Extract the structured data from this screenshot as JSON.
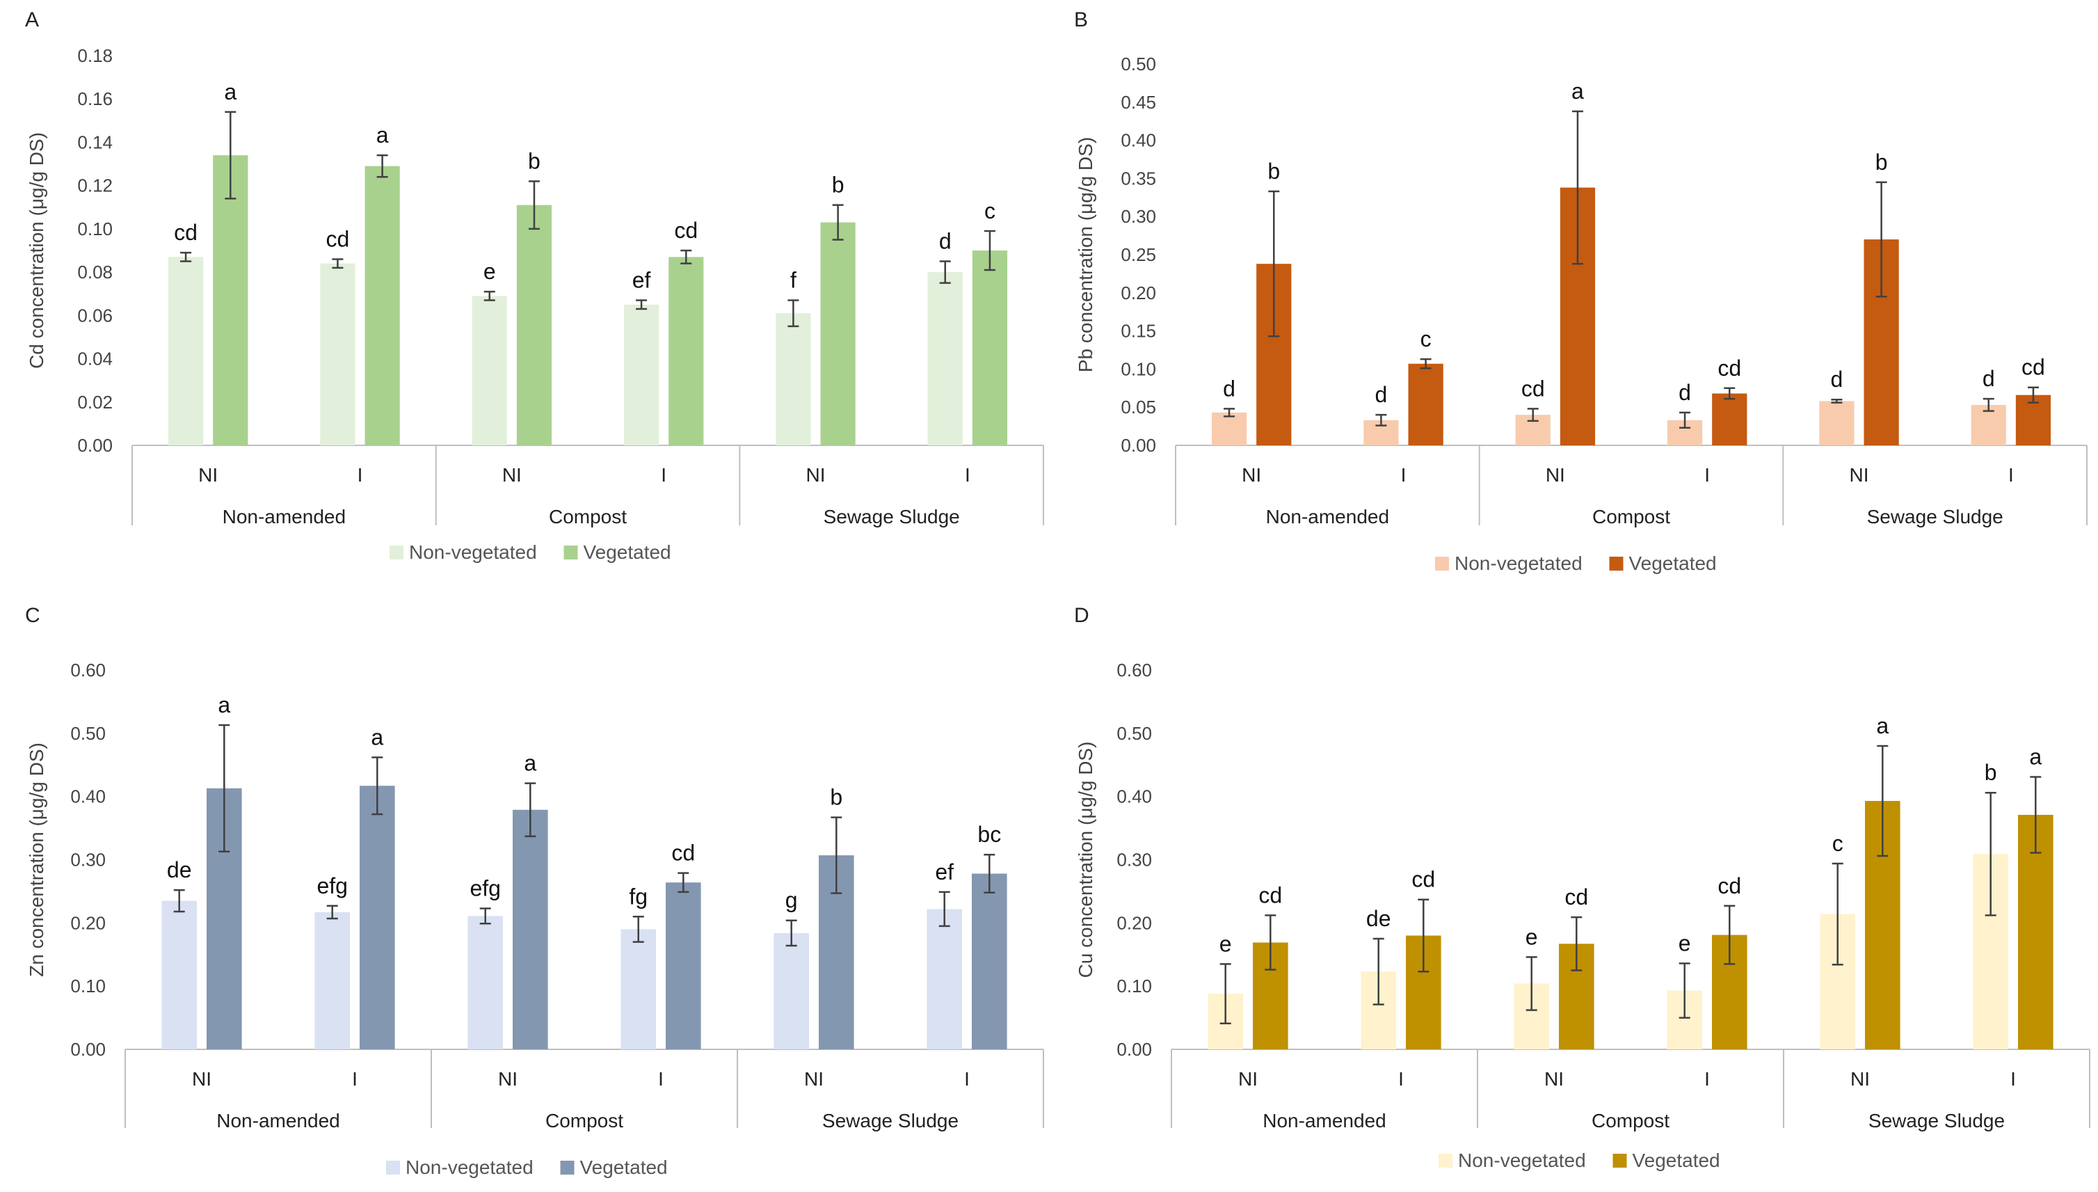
{
  "chart_data": [
    {
      "type": "bar",
      "panel_label": "A",
      "ylabel": "Cd concentration (μg/g DS)",
      "ylim": [
        0,
        0.18
      ],
      "ytick_labels": [
        "0.00",
        "0.02",
        "0.04",
        "0.06",
        "0.08",
        "0.10",
        "0.12",
        "0.14",
        "0.16",
        "0.18"
      ],
      "groups": [
        "Non-amended",
        "Compost",
        "Sewage Sludge"
      ],
      "categories": [
        "NI",
        "I",
        "NI",
        "I",
        "NI",
        "I"
      ],
      "series": [
        {
          "name": "Non-vegetated",
          "color": "#e2efda",
          "values": [
            0.087,
            0.084,
            0.069,
            0.065,
            0.061,
            0.08
          ],
          "errors": [
            0.002,
            0.002,
            0.002,
            0.002,
            0.006,
            0.005
          ],
          "letters": [
            "cd",
            "cd",
            "e",
            "ef",
            "f",
            "d"
          ]
        },
        {
          "name": "Vegetated",
          "color": "#a9d18e",
          "values": [
            0.134,
            0.129,
            0.111,
            0.087,
            0.103,
            0.09
          ],
          "errors": [
            0.02,
            0.005,
            0.011,
            0.003,
            0.008,
            0.009
          ],
          "letters": [
            "a",
            "a",
            "b",
            "cd",
            "b",
            "c"
          ]
        }
      ]
    },
    {
      "type": "bar",
      "panel_label": "B",
      "ylabel": "Pb concentration (μg/g DS)",
      "ylim": [
        0,
        0.5
      ],
      "ytick_labels": [
        "0.00",
        "0.05",
        "0.10",
        "0.15",
        "0.20",
        "0.25",
        "0.30",
        "0.35",
        "0.40",
        "0.45",
        "0.50"
      ],
      "groups": [
        "Non-amended",
        "Compost",
        "Sewage Sludge"
      ],
      "categories": [
        "NI",
        "I",
        "NI",
        "I",
        "NI",
        "I"
      ],
      "series": [
        {
          "name": "Non-vegetated",
          "color": "#f8cbad",
          "values": [
            0.043,
            0.033,
            0.04,
            0.033,
            0.058,
            0.053
          ],
          "errors": [
            0.005,
            0.007,
            0.008,
            0.01,
            0.002,
            0.008
          ],
          "letters": [
            "d",
            "d",
            "cd",
            "d",
            "d",
            "d"
          ]
        },
        {
          "name": "Vegetated",
          "color": "#c55a11",
          "values": [
            0.238,
            0.107,
            0.338,
            0.068,
            0.27,
            0.066
          ],
          "errors": [
            0.095,
            0.006,
            0.1,
            0.007,
            0.075,
            0.01
          ],
          "letters": [
            "b",
            "c",
            "a",
            "cd",
            "b",
            "cd"
          ]
        }
      ]
    },
    {
      "type": "bar",
      "panel_label": "C",
      "ylabel": "Zn concentration (μg/g DS)",
      "ylim": [
        0,
        0.6
      ],
      "ytick_labels": [
        "0.00",
        "0.10",
        "0.20",
        "0.30",
        "0.40",
        "0.50",
        "0.60"
      ],
      "groups": [
        "Non-amended",
        "Compost",
        "Sewage Sludge"
      ],
      "categories": [
        "NI",
        "I",
        "NI",
        "I",
        "NI",
        "I"
      ],
      "series": [
        {
          "name": "Non-vegetated",
          "color": "#d9e1f2",
          "values": [
            0.235,
            0.217,
            0.211,
            0.19,
            0.184,
            0.222
          ],
          "errors": [
            0.017,
            0.01,
            0.012,
            0.02,
            0.02,
            0.027
          ],
          "letters": [
            "de",
            "efg",
            "efg",
            "fg",
            "g",
            "ef"
          ]
        },
        {
          "name": "Vegetated",
          "color": "#8497b0",
          "values": [
            0.413,
            0.417,
            0.379,
            0.264,
            0.307,
            0.278
          ],
          "errors": [
            0.1,
            0.045,
            0.042,
            0.015,
            0.06,
            0.03
          ],
          "letters": [
            "a",
            "a",
            "a",
            "cd",
            "b",
            "bc"
          ]
        }
      ]
    },
    {
      "type": "bar",
      "panel_label": "D",
      "ylabel": "Cu concentration (μg/g DS)",
      "ylim": [
        0,
        0.6
      ],
      "ytick_labels": [
        "0.00",
        "0.10",
        "0.20",
        "0.30",
        "0.40",
        "0.50",
        "0.60"
      ],
      "groups": [
        "Non-amended",
        "Compost",
        "Sewage Sludge"
      ],
      "categories": [
        "NI",
        "I",
        "NI",
        "I",
        "NI",
        "I"
      ],
      "series": [
        {
          "name": "Non-vegetated",
          "color": "#fff2cc",
          "values": [
            0.088,
            0.123,
            0.104,
            0.093,
            0.214,
            0.309
          ],
          "errors": [
            0.047,
            0.052,
            0.042,
            0.043,
            0.08,
            0.097
          ],
          "letters": [
            "e",
            "de",
            "e",
            "e",
            "c",
            "b"
          ]
        },
        {
          "name": "Vegetated",
          "color": "#bf9000",
          "values": [
            0.169,
            0.18,
            0.167,
            0.181,
            0.393,
            0.371
          ],
          "errors": [
            0.043,
            0.057,
            0.042,
            0.046,
            0.087,
            0.06
          ],
          "letters": [
            "cd",
            "cd",
            "cd",
            "cd",
            "a",
            "a"
          ]
        }
      ]
    }
  ]
}
